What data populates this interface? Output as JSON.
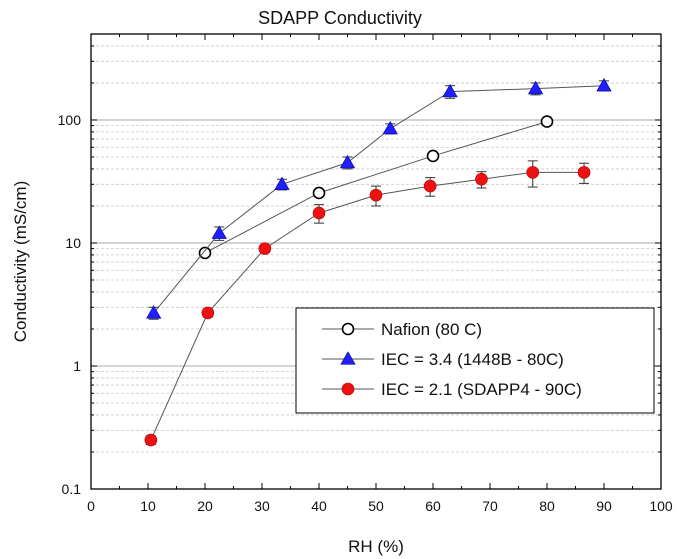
{
  "chart_data": {
    "type": "scatter",
    "title": "SDAPP Conductivity",
    "xlabel": "RH (%)",
    "ylabel": "Conductivity (mS/cm)",
    "xlim": [
      0,
      100
    ],
    "ylim": [
      0.1,
      500
    ],
    "y_scale": "log",
    "x_ticks": [
      0,
      10,
      20,
      30,
      40,
      50,
      60,
      70,
      80,
      90,
      100
    ],
    "y_ticks": [
      0.1,
      1,
      10,
      100
    ],
    "y_tick_labels": [
      "0.1",
      "1",
      "10",
      "100"
    ],
    "grid": "horizontal major lines at each decade, dashed minor lines",
    "legend_position": "center-right",
    "series": [
      {
        "name": "Nafion  (80 C)",
        "marker": "open-circle",
        "color": "#000000",
        "x": [
          20,
          40,
          60,
          80
        ],
        "y": [
          8.3,
          25.5,
          51,
          97
        ]
      },
      {
        "name": "IEC = 3.4 (1448B - 80C)",
        "marker": "triangle",
        "color": "#1f1fff",
        "x": [
          11,
          22.5,
          33.5,
          45,
          52.5,
          63,
          78,
          90
        ],
        "y": [
          2.7,
          12,
          30,
          45,
          85,
          170,
          180,
          190
        ],
        "err": [
          0.3,
          1.5,
          3,
          5,
          8,
          20,
          20,
          18
        ]
      },
      {
        "name": "IEC = 2.1 (SDAPP4 - 90C)",
        "marker": "filled-circle",
        "color": "#ee1111",
        "x": [
          10.5,
          20.5,
          30.5,
          40,
          50,
          59.5,
          68.5,
          77.5,
          86.5
        ],
        "y": [
          0.25,
          2.7,
          9,
          17.5,
          24.5,
          29,
          33,
          37.5,
          37.5
        ],
        "err": [
          0.02,
          0.2,
          0.6,
          3,
          4.5,
          5,
          5,
          9,
          7
        ]
      }
    ]
  }
}
